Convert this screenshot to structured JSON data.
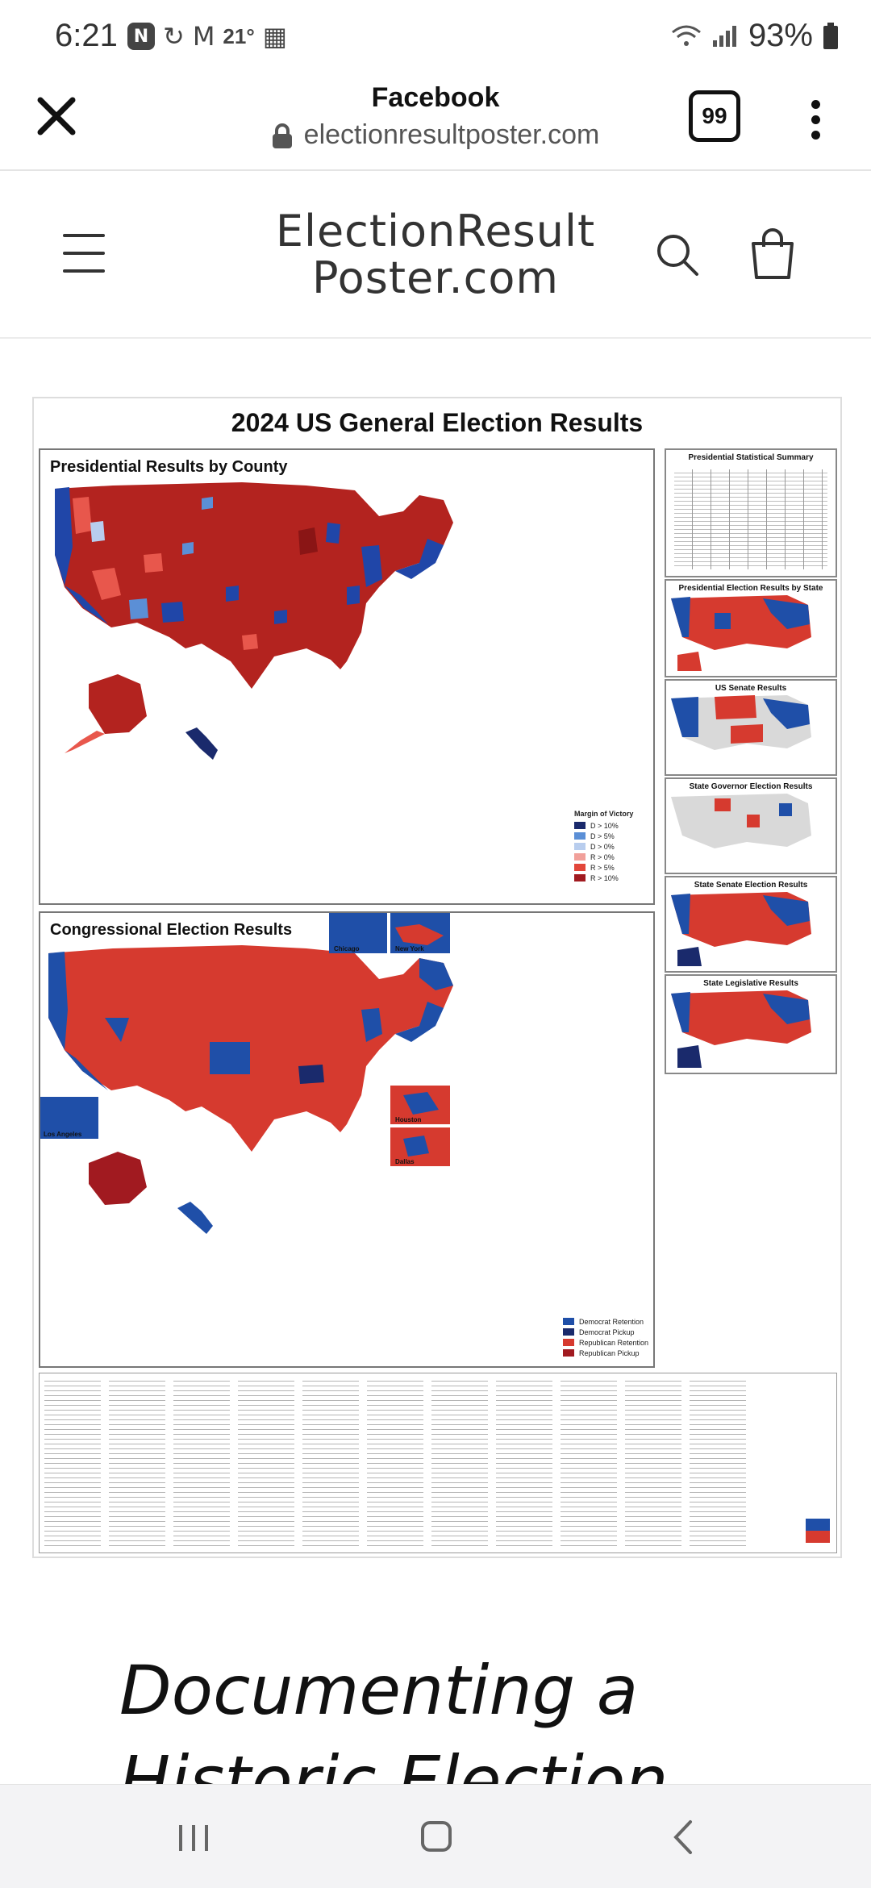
{
  "status_bar": {
    "time": "6:21",
    "temperature": "21°",
    "battery": "93%"
  },
  "browser": {
    "title": "Facebook",
    "url": "electionresultposter.com",
    "tab_count": "99"
  },
  "site": {
    "title": "ElectionResultPoster.com"
  },
  "poster": {
    "title": "2024 US General Election Results",
    "presidential_panel": "Presidential Results by County",
    "congressional_panel": "Congressional Election Results",
    "side_panels": [
      "Presidential Statistical Summary",
      "Presidential Election Results by State",
      "US Senate Results",
      "State Governor Election Results",
      "State Senate Election Results",
      "State Legislative Results"
    ],
    "margin_legend": {
      "title": "Margin of Victory",
      "items": [
        "D > 10%",
        "D > 5%",
        "D > 0%",
        "R > 0%",
        "R > 5%",
        "R > 10%"
      ],
      "colors": [
        "#1a2a6c",
        "#5b8fd6",
        "#b8cdee",
        "#f1a09a",
        "#e2463a",
        "#a11a20"
      ]
    },
    "cong_legend": {
      "items": [
        "Democrat Retention",
        "Democrat Pickup",
        "Republican Retention",
        "Republican Pickup"
      ],
      "colors": [
        "#1f4fa8",
        "#1a2a6c",
        "#d63a2f",
        "#a11a20"
      ]
    },
    "inset_labels": {
      "chicago": "Chicago",
      "new_york": "New York",
      "los_angeles": "Los Angeles",
      "houston": "Houston",
      "dallas": "Dallas"
    }
  },
  "article": {
    "heading": "Documenting a Historic Election"
  },
  "colors": {
    "republican": "#c9302c",
    "democrat": "#1f4fa8"
  }
}
